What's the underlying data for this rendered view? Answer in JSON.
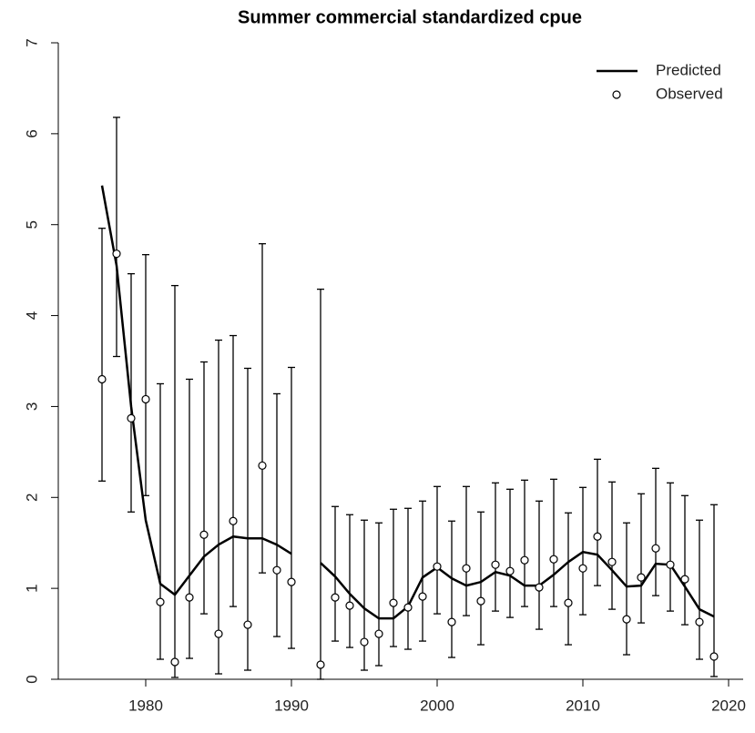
{
  "chart_data": {
    "type": "line",
    "title": "Summer commercial standardized cpue",
    "x": [
      1977,
      1978,
      1979,
      1980,
      1981,
      1982,
      1983,
      1984,
      1985,
      1986,
      1987,
      1988,
      1989,
      1990,
      1991,
      1992,
      1993,
      1994,
      1995,
      1996,
      1997,
      1998,
      1999,
      2000,
      2001,
      2002,
      2003,
      2004,
      2005,
      2006,
      2007,
      2008,
      2009,
      2010,
      2011,
      2012,
      2013,
      2014,
      2015,
      2016,
      2017,
      2018,
      2019
    ],
    "series": [
      {
        "name": "Predicted",
        "color": "#000000",
        "mark": "line",
        "values": [
          5.43,
          4.55,
          3.0,
          1.75,
          1.05,
          0.93,
          1.14,
          1.35,
          1.48,
          1.57,
          1.55,
          1.55,
          1.48,
          1.38,
          null,
          1.28,
          1.13,
          0.94,
          0.78,
          0.67,
          0.67,
          0.8,
          1.12,
          1.23,
          1.11,
          1.03,
          1.07,
          1.18,
          1.14,
          1.03,
          1.03,
          1.15,
          1.29,
          1.4,
          1.37,
          1.2,
          1.02,
          1.03,
          1.27,
          1.26,
          1.02,
          0.77,
          0.69
        ]
      },
      {
        "name": "Observed",
        "color": "#000000",
        "mark": "point",
        "values": [
          3.3,
          4.68,
          2.87,
          3.08,
          0.85,
          0.19,
          0.9,
          1.59,
          0.5,
          1.74,
          0.6,
          2.35,
          1.2,
          1.07,
          null,
          0.16,
          0.9,
          0.81,
          0.41,
          0.5,
          0.84,
          0.79,
          0.91,
          1.24,
          0.63,
          1.22,
          0.86,
          1.26,
          1.19,
          1.31,
          1.01,
          1.32,
          0.84,
          1.22,
          1.57,
          1.29,
          0.66,
          1.12,
          1.44,
          1.26,
          1.1,
          0.63,
          0.25
        ],
        "lower": [
          2.18,
          3.55,
          1.84,
          2.02,
          0.22,
          0.02,
          0.23,
          0.72,
          0.06,
          0.8,
          0.1,
          1.17,
          0.47,
          0.34,
          null,
          0.0,
          0.42,
          0.35,
          0.1,
          0.15,
          0.36,
          0.33,
          0.42,
          0.72,
          0.24,
          0.7,
          0.38,
          0.75,
          0.68,
          0.8,
          0.55,
          0.8,
          0.38,
          0.71,
          1.03,
          0.77,
          0.27,
          0.62,
          0.92,
          0.75,
          0.6,
          0.22,
          0.03
        ],
        "upper": [
          4.96,
          6.18,
          4.46,
          4.67,
          3.25,
          4.33,
          3.3,
          3.49,
          3.73,
          3.78,
          3.42,
          4.79,
          3.14,
          3.43,
          null,
          4.29,
          1.9,
          1.81,
          1.75,
          1.72,
          1.87,
          1.88,
          1.96,
          2.12,
          1.74,
          2.12,
          1.84,
          2.16,
          2.09,
          2.19,
          1.96,
          2.2,
          1.83,
          2.11,
          2.42,
          2.17,
          1.72,
          2.04,
          2.32,
          2.16,
          2.02,
          1.75,
          1.92
        ]
      }
    ],
    "xlim": [
      1974,
      2021
    ],
    "xticks": [
      1980,
      1990,
      2000,
      2010,
      2020
    ],
    "ylim": [
      0,
      7
    ],
    "yticks": [
      0,
      1,
      2,
      3,
      4,
      5,
      6,
      7
    ],
    "legend": "top-right"
  }
}
